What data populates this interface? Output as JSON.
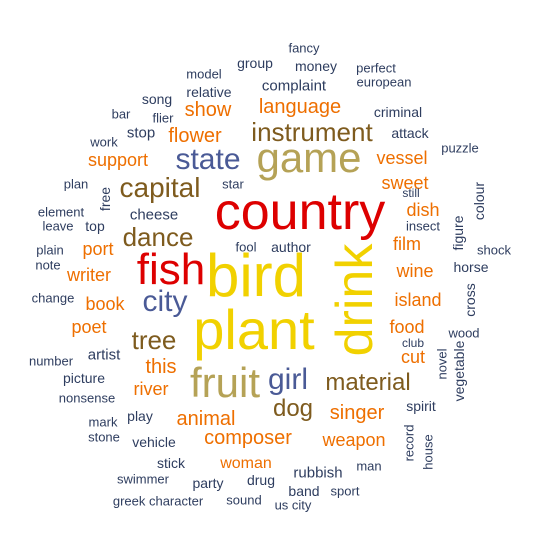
{
  "palette": {
    "red": "#dd0000",
    "yellow": "#f1d100",
    "olive": "#b5a256",
    "orange": "#ee6f00",
    "blue": "#4a5a96",
    "brown": "#7e5b1e",
    "navy": "#2e3d5f"
  },
  "words": [
    {
      "text": "country",
      "color": "red"
    },
    {
      "text": "bird",
      "color": "yellow"
    },
    {
      "text": "plant",
      "color": "yellow"
    },
    {
      "text": "drink",
      "color": "yellow"
    },
    {
      "text": "fish",
      "color": "red"
    },
    {
      "text": "game",
      "color": "olive"
    },
    {
      "text": "fruit",
      "color": "olive"
    },
    {
      "text": "state",
      "color": "blue"
    },
    {
      "text": "city",
      "color": "blue"
    },
    {
      "text": "girl",
      "color": "blue"
    },
    {
      "text": "capital",
      "color": "brown"
    },
    {
      "text": "dance",
      "color": "brown"
    },
    {
      "text": "instrument",
      "color": "brown"
    },
    {
      "text": "tree",
      "color": "brown"
    },
    {
      "text": "material",
      "color": "brown"
    },
    {
      "text": "dog",
      "color": "brown"
    },
    {
      "text": "language",
      "color": "orange"
    },
    {
      "text": "flower",
      "color": "orange"
    },
    {
      "text": "show",
      "color": "orange"
    },
    {
      "text": "support",
      "color": "orange"
    },
    {
      "text": "vessel",
      "color": "orange"
    },
    {
      "text": "sweet",
      "color": "orange"
    },
    {
      "text": "dish",
      "color": "orange"
    },
    {
      "text": "film",
      "color": "orange"
    },
    {
      "text": "wine",
      "color": "orange"
    },
    {
      "text": "island",
      "color": "orange"
    },
    {
      "text": "food",
      "color": "orange"
    },
    {
      "text": "cut",
      "color": "orange"
    },
    {
      "text": "port",
      "color": "orange"
    },
    {
      "text": "writer",
      "color": "orange"
    },
    {
      "text": "book",
      "color": "orange"
    },
    {
      "text": "poet",
      "color": "orange"
    },
    {
      "text": "this",
      "color": "orange"
    },
    {
      "text": "river",
      "color": "orange"
    },
    {
      "text": "animal",
      "color": "orange"
    },
    {
      "text": "composer",
      "color": "orange"
    },
    {
      "text": "singer",
      "color": "orange"
    },
    {
      "text": "weapon",
      "color": "orange"
    },
    {
      "text": "woman",
      "color": "orange"
    },
    {
      "text": "rubbish",
      "color": "navy"
    },
    {
      "text": "fancy",
      "color": "navy"
    },
    {
      "text": "group",
      "color": "navy"
    },
    {
      "text": "money",
      "color": "navy"
    },
    {
      "text": "perfect",
      "color": "navy"
    },
    {
      "text": "model",
      "color": "navy"
    },
    {
      "text": "european",
      "color": "navy"
    },
    {
      "text": "relative",
      "color": "navy"
    },
    {
      "text": "complaint",
      "color": "navy"
    },
    {
      "text": "song",
      "color": "navy"
    },
    {
      "text": "bar",
      "color": "navy"
    },
    {
      "text": "flier",
      "color": "navy"
    },
    {
      "text": "criminal",
      "color": "navy"
    },
    {
      "text": "work",
      "color": "navy"
    },
    {
      "text": "stop",
      "color": "navy"
    },
    {
      "text": "attack",
      "color": "navy"
    },
    {
      "text": "puzzle",
      "color": "navy"
    },
    {
      "text": "plan",
      "color": "navy"
    },
    {
      "text": "star",
      "color": "navy"
    },
    {
      "text": "still",
      "color": "navy"
    },
    {
      "text": "element",
      "color": "navy"
    },
    {
      "text": "free",
      "color": "navy"
    },
    {
      "text": "cheese",
      "color": "navy"
    },
    {
      "text": "leave",
      "color": "navy"
    },
    {
      "text": "top",
      "color": "navy"
    },
    {
      "text": "insect",
      "color": "navy"
    },
    {
      "text": "figure",
      "color": "navy"
    },
    {
      "text": "colour",
      "color": "navy"
    },
    {
      "text": "plain",
      "color": "navy"
    },
    {
      "text": "fool",
      "color": "navy"
    },
    {
      "text": "author",
      "color": "navy"
    },
    {
      "text": "shock",
      "color": "navy"
    },
    {
      "text": "note",
      "color": "navy"
    },
    {
      "text": "horse",
      "color": "navy"
    },
    {
      "text": "change",
      "color": "navy"
    },
    {
      "text": "cross",
      "color": "navy"
    },
    {
      "text": "wood",
      "color": "navy"
    },
    {
      "text": "club",
      "color": "navy"
    },
    {
      "text": "number",
      "color": "navy"
    },
    {
      "text": "artist",
      "color": "navy"
    },
    {
      "text": "novel",
      "color": "navy"
    },
    {
      "text": "vegetable",
      "color": "navy"
    },
    {
      "text": "picture",
      "color": "navy"
    },
    {
      "text": "nonsense",
      "color": "navy"
    },
    {
      "text": "spirit",
      "color": "navy"
    },
    {
      "text": "play",
      "color": "navy"
    },
    {
      "text": "mark",
      "color": "navy"
    },
    {
      "text": "stone",
      "color": "navy"
    },
    {
      "text": "vehicle",
      "color": "navy"
    },
    {
      "text": "record",
      "color": "navy"
    },
    {
      "text": "house",
      "color": "navy"
    },
    {
      "text": "stick",
      "color": "navy"
    },
    {
      "text": "man",
      "color": "navy"
    },
    {
      "text": "swimmer",
      "color": "navy"
    },
    {
      "text": "party",
      "color": "navy"
    },
    {
      "text": "drug",
      "color": "navy"
    },
    {
      "text": "band",
      "color": "navy"
    },
    {
      "text": "sport",
      "color": "navy"
    },
    {
      "text": "greek character",
      "color": "navy"
    },
    {
      "text": "sound",
      "color": "navy"
    },
    {
      "text": "us city",
      "color": "navy"
    }
  ]
}
